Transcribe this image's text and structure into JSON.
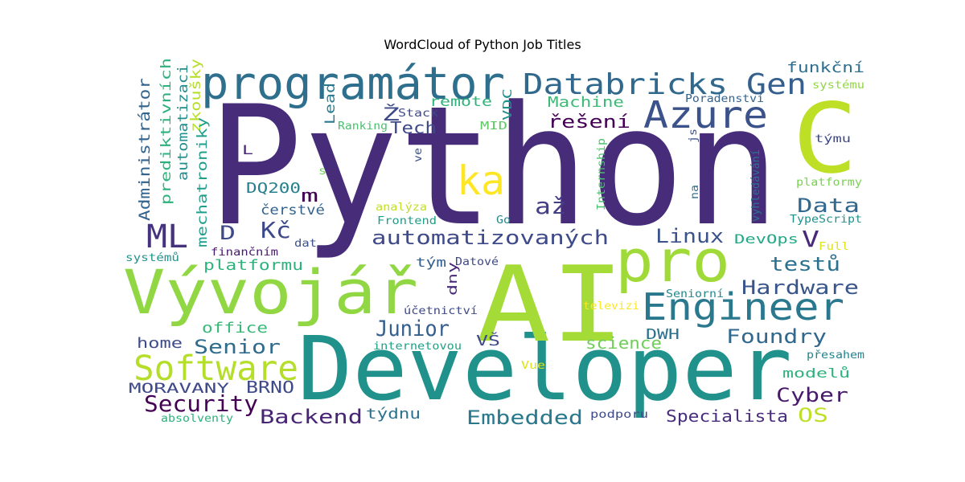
{
  "chart_data": {
    "type": "wordcloud",
    "title": "WordCloud of Python Job Titles",
    "colormap": "viridis",
    "words": [
      {
        "text": "Python",
        "color": "#472c7a"
      },
      {
        "text": "Developer",
        "color": "#21918c"
      },
      {
        "text": "AI",
        "color": "#a5db36"
      },
      {
        "text": "Vývojář",
        "color": "#90d743"
      },
      {
        "text": "programátor",
        "color": "#2e6f8e"
      },
      {
        "text": "C",
        "color": "#bddf26"
      },
      {
        "text": "pro",
        "color": "#a0da39"
      },
      {
        "text": "Engineer",
        "color": "#2a788e"
      },
      {
        "text": "Azure",
        "color": "#3b528b"
      },
      {
        "text": "Databricks",
        "color": "#31688e"
      },
      {
        "text": "Gen",
        "color": "#355f8d"
      },
      {
        "text": "ka",
        "color": "#fde725"
      },
      {
        "text": "až",
        "color": "#433e85"
      },
      {
        "text": "Software",
        "color": "#b5de2b"
      },
      {
        "text": "ML",
        "color": "#46327e"
      },
      {
        "text": "Kč",
        "color": "#3e4989"
      },
      {
        "text": "automatizovaných",
        "color": "#3e4a89"
      },
      {
        "text": "Data",
        "color": "#31688e"
      },
      {
        "text": "Linux",
        "color": "#3b528b"
      },
      {
        "text": "V",
        "color": "#482878"
      },
      {
        "text": "testů",
        "color": "#2c728e"
      },
      {
        "text": "Hardware",
        "color": "#39568c"
      },
      {
        "text": "Junior",
        "color": "#355f8d"
      },
      {
        "text": "Foundry",
        "color": "#31688e"
      },
      {
        "text": "Senior",
        "color": "#2f6c8e"
      },
      {
        "text": "Security",
        "color": "#440154"
      },
      {
        "text": "Backend",
        "color": "#482475"
      },
      {
        "text": "Embedded",
        "color": "#2a788e"
      },
      {
        "text": "Cyber",
        "color": "#481a6c"
      },
      {
        "text": "Specialista",
        "color": "#472d7b"
      },
      {
        "text": "OS",
        "color": "#bddf26"
      },
      {
        "text": "BRNO",
        "color": "#3e4a89"
      },
      {
        "text": "MORAVANY",
        "color": "#3e4989"
      },
      {
        "text": "týdnu",
        "color": "#2c728e"
      },
      {
        "text": "home",
        "color": "#3e4c8a"
      },
      {
        "text": "office",
        "color": "#37b878"
      },
      {
        "text": "platformu",
        "color": "#2db27d"
      },
      {
        "text": "science",
        "color": "#6ece58"
      },
      {
        "text": "DWH",
        "color": "#2c718e"
      },
      {
        "text": "VŠ",
        "color": "#3e4989"
      },
      {
        "text": "řešení",
        "color": "#440154"
      },
      {
        "text": "Machine",
        "color": "#3bbb75"
      },
      {
        "text": "Tech",
        "color": "#3e4989"
      },
      {
        "text": "remote",
        "color": "#2eb37c"
      },
      {
        "text": "funkční",
        "color": "#2e6f8e"
      },
      {
        "text": "DevOps",
        "color": "#22a884"
      },
      {
        "text": "DQ200",
        "color": "#277f8e"
      },
      {
        "text": "čerstvé",
        "color": "#33638d"
      },
      {
        "text": "m",
        "color": "#440154"
      },
      {
        "text": "D",
        "color": "#3e4989"
      },
      {
        "text": "Administrátor",
        "color": "#33638d"
      },
      {
        "text": "prediktivních",
        "color": "#2db27d"
      },
      {
        "text": "automatizaci",
        "color": "#228d8d"
      },
      {
        "text": "zkoušky",
        "color": "#b5de2b"
      },
      {
        "text": "mechatroniky",
        "color": "#1f9e89"
      },
      {
        "text": "Lead",
        "color": "#2a788e"
      },
      {
        "text": "Ž",
        "color": "#3e4989"
      },
      {
        "text": "Stack",
        "color": "#3e4989"
      },
      {
        "text": "VDC",
        "color": "#20928c"
      },
      {
        "text": "L",
        "color": "#482878"
      },
      {
        "text": "Ranking",
        "color": "#4ac16d"
      },
      {
        "text": "MID",
        "color": "#5ec962"
      },
      {
        "text": "Internship",
        "color": "#4ac16d"
      },
      {
        "text": "vyhledávání",
        "color": "#2c728e"
      },
      {
        "text": "na",
        "color": "#2c728e"
      },
      {
        "text": "js",
        "color": "#3b528b"
      },
      {
        "text": "týmu",
        "color": "#3e4989"
      },
      {
        "text": "systému",
        "color": "#90d743"
      },
      {
        "text": "Poradenství",
        "color": "#33638d"
      },
      {
        "text": "platformy",
        "color": "#7ad151"
      },
      {
        "text": "TypeScript",
        "color": "#20928c"
      },
      {
        "text": "Full",
        "color": "#dde318"
      },
      {
        "text": "analýza",
        "color": "#c2df23"
      },
      {
        "text": "Frontend",
        "color": "#1f9e89"
      },
      {
        "text": "Go",
        "color": "#23898e"
      },
      {
        "text": "tým",
        "color": "#355f8d"
      },
      {
        "text": "dny",
        "color": "#482878"
      },
      {
        "text": "Datové",
        "color": "#3e4989"
      },
      {
        "text": "ve",
        "color": "#3b528b"
      },
      {
        "text": "s",
        "color": "#6ece58"
      },
      {
        "text": "dat",
        "color": "#3b528b"
      },
      {
        "text": "finančním",
        "color": "#481a6c"
      },
      {
        "text": "systémů",
        "color": "#20928c"
      },
      {
        "text": "účetnictví",
        "color": "#3e4989"
      },
      {
        "text": "Seniorní",
        "color": "#23888e"
      },
      {
        "text": "televizi",
        "color": "#fde725"
      },
      {
        "text": "internetovou",
        "color": "#1fa187"
      },
      {
        "text": "přesahem",
        "color": "#26828e"
      },
      {
        "text": "modelů",
        "color": "#2db27d"
      },
      {
        "text": "Vue",
        "color": "#dde318"
      },
      {
        "text": "podporu",
        "color": "#3e4989"
      },
      {
        "text": "absolventy",
        "color": "#2db27d"
      }
    ]
  }
}
